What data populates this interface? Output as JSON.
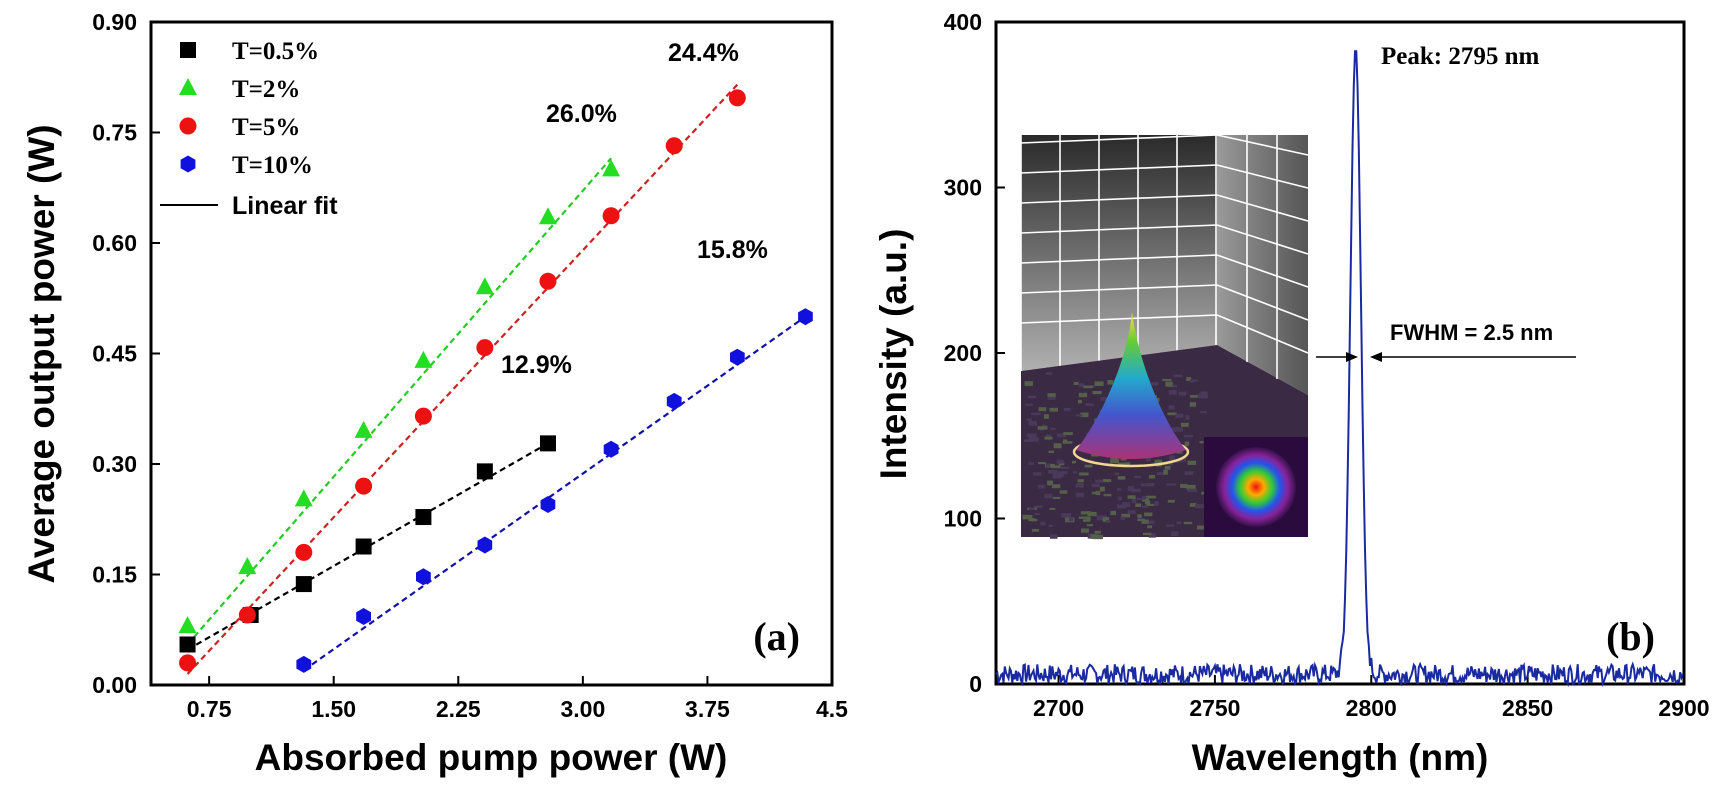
{
  "chart_data": [
    {
      "type": "scatter",
      "panel_label": "(a)",
      "xlabel": "Absorbed pump power  (W)",
      "ylabel": "Average output power (W)",
      "xlim": [
        0.4,
        4.5
      ],
      "ylim": [
        0,
        0.9
      ],
      "xticks": [
        "0.75",
        "1.50",
        "2.25",
        "3.00",
        "3.75",
        "4.5"
      ],
      "xtick_values": [
        0.75,
        1.5,
        2.25,
        3.0,
        3.75,
        4.5
      ],
      "yticks": [
        "0.00",
        "0.15",
        "0.30",
        "0.45",
        "0.60",
        "0.75",
        "0.90"
      ],
      "ytick_values": [
        0,
        0.15,
        0.3,
        0.45,
        0.6,
        0.75,
        0.9
      ],
      "legend_position": "top-left",
      "fit_label": "Linear fit",
      "series": [
        {
          "name": "T=0.5%",
          "marker": "square",
          "color": "#000000",
          "fit_color": "#000000",
          "efficiency": "12.9%",
          "x": [
            0.62,
            1.0,
            1.32,
            1.68,
            2.04,
            2.41,
            2.79
          ],
          "y": [
            0.055,
            0.095,
            0.137,
            0.188,
            0.228,
            0.29,
            0.328
          ],
          "fit": [
            [
              0.62,
              0.048
            ],
            [
              2.79,
              0.328
            ]
          ]
        },
        {
          "name": "T=2%",
          "marker": "triangle",
          "color": "#22dd22",
          "fit_color": "#22cc22",
          "efficiency": "26.0%",
          "x": [
            0.62,
            0.98,
            1.32,
            1.68,
            2.04,
            2.41,
            2.79,
            3.17
          ],
          "y": [
            0.08,
            0.16,
            0.252,
            0.345,
            0.44,
            0.54,
            0.635,
            0.7
          ],
          "fit": [
            [
              0.62,
              0.055
            ],
            [
              3.17,
              0.715
            ]
          ]
        },
        {
          "name": "T=5%",
          "marker": "circle",
          "color": "#ee1111",
          "fit_color": "#cc2222",
          "efficiency": "24.4%",
          "x": [
            0.62,
            0.98,
            1.32,
            1.68,
            2.04,
            2.41,
            2.79,
            3.17,
            3.55,
            3.93
          ],
          "y": [
            0.03,
            0.095,
            0.18,
            0.27,
            0.365,
            0.458,
            0.548,
            0.637,
            0.732,
            0.797
          ],
          "fit": [
            [
              0.62,
              0.015
            ],
            [
              3.93,
              0.815
            ]
          ]
        },
        {
          "name": "T=10%",
          "marker": "hexagon",
          "color": "#1111dd",
          "fit_color": "#1111aa",
          "efficiency": "15.8%",
          "x": [
            1.32,
            1.68,
            2.04,
            2.41,
            2.79,
            3.17,
            3.55,
            3.93,
            4.34
          ],
          "y": [
            0.028,
            0.093,
            0.147,
            0.19,
            0.245,
            0.32,
            0.385,
            0.445,
            0.5
          ],
          "fit": [
            [
              1.32,
              0.02
            ],
            [
              4.34,
              0.5
            ]
          ]
        }
      ]
    },
    {
      "type": "line",
      "panel_label": "(b)",
      "xlabel": "Wavelength (nm)",
      "ylabel": "Intensity (a.u.)",
      "xlim": [
        2680,
        2900
      ],
      "ylim": [
        0,
        400
      ],
      "xticks": [
        "2700",
        "2750",
        "2800",
        "2850",
        "2900"
      ],
      "xtick_values": [
        2700,
        2750,
        2800,
        2850,
        2900
      ],
      "yticks": [
        "0",
        "100",
        "200",
        "300",
        "400"
      ],
      "ytick_values": [
        0,
        100,
        200,
        300,
        400
      ],
      "color": "#1a2aa0",
      "peak_annotation": "Peak: 2795 nm",
      "fwhm_annotation": "FWHM = 2.5 nm",
      "peak_wavelength": 2795,
      "peak_intensity": 385,
      "fwhm_nm": 2.5,
      "baseline_noise": [
        0,
        12
      ],
      "inset": "3D beam profile and far-field intensity spot"
    }
  ]
}
